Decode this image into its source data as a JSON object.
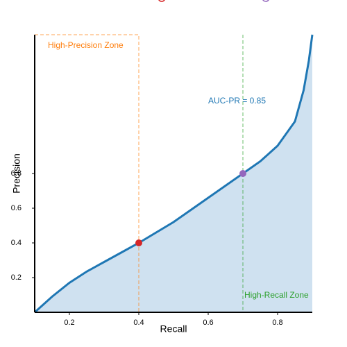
{
  "chart_data": {
    "type": "line",
    "xlabel": "Recall",
    "ylabel": "Precision",
    "x": [
      0.1,
      0.15,
      0.2,
      0.25,
      0.3,
      0.35,
      0.4,
      0.45,
      0.5,
      0.55,
      0.6,
      0.65,
      0.7,
      0.75,
      0.8,
      0.85,
      0.875,
      0.89,
      0.9
    ],
    "series": [
      {
        "color": "#1f77b4",
        "fill": "#cfe1f0",
        "values": [
          0,
          0.09,
          0.17,
          0.235,
          0.29,
          0.345,
          0.4,
          0.46,
          0.52,
          0.59,
          0.66,
          0.73,
          0.8,
          0.87,
          0.96,
          1.1,
          1.28,
          1.45,
          1.6
        ]
      }
    ],
    "points": [
      {
        "x": 0.4,
        "y": 0.4,
        "color": "#d62728"
      },
      {
        "x": 0.7,
        "y": 0.8,
        "color": "#9467bd"
      }
    ],
    "zones": [
      {
        "label": "High-Precision Zone",
        "x": [
          0.1,
          0.4
        ],
        "color": "#ff7f0e"
      },
      {
        "label": "High-Recall Zone",
        "x": [
          0.7,
          0.9
        ],
        "color": "#2ca02c"
      }
    ],
    "annotation": "AUC-PR = 0.85",
    "annotation_color": "#1f77b4",
    "xlim": [
      0.1,
      0.9
    ],
    "ylim": [
      0,
      1.6
    ],
    "xticks": [
      0.2,
      0.4,
      0.6,
      0.8
    ],
    "yticks": [
      0.2,
      0.4,
      0.6,
      0.8
    ]
  }
}
